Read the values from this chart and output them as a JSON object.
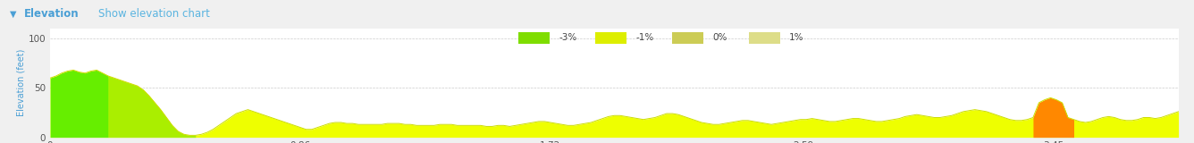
{
  "title": "Elevation",
  "subtitle": "Show elevation chart",
  "ylabel": "Elevation (feet)",
  "yticks": [
    0,
    50,
    100
  ],
  "ylim": [
    0,
    110
  ],
  "xticks": [
    0,
    0.86,
    1.72,
    2.59,
    3.45
  ],
  "xlim": [
    0,
    3.88
  ],
  "background_color": "#f0f0f0",
  "plot_bg_color": "#ffffff",
  "grid_color": "#cccccc",
  "legend_items": [
    {
      "label": "-3%",
      "color": "#7FDD00"
    },
    {
      "label": "-1%",
      "color": "#DDEE00"
    },
    {
      "label": "0%",
      "color": "#CCCC55"
    },
    {
      "label": "1%",
      "color": "#DDDD88"
    }
  ],
  "elevation_x": [
    0.0,
    0.02,
    0.04,
    0.06,
    0.08,
    0.1,
    0.12,
    0.14,
    0.16,
    0.18,
    0.2,
    0.22,
    0.24,
    0.26,
    0.28,
    0.3,
    0.32,
    0.34,
    0.36,
    0.38,
    0.4,
    0.42,
    0.44,
    0.46,
    0.48,
    0.5,
    0.52,
    0.54,
    0.56,
    0.58,
    0.6,
    0.62,
    0.64,
    0.66,
    0.68,
    0.7,
    0.72,
    0.74,
    0.76,
    0.78,
    0.8,
    0.82,
    0.84,
    0.86,
    0.88,
    0.9,
    0.92,
    0.94,
    0.96,
    0.98,
    1.0,
    1.02,
    1.04,
    1.06,
    1.08,
    1.1,
    1.12,
    1.14,
    1.16,
    1.18,
    1.2,
    1.22,
    1.24,
    1.26,
    1.28,
    1.3,
    1.32,
    1.34,
    1.36,
    1.38,
    1.4,
    1.42,
    1.44,
    1.46,
    1.48,
    1.5,
    1.52,
    1.54,
    1.56,
    1.58,
    1.6,
    1.62,
    1.64,
    1.66,
    1.68,
    1.7,
    1.72,
    1.74,
    1.76,
    1.78,
    1.8,
    1.82,
    1.84,
    1.86,
    1.88,
    1.9,
    1.92,
    1.94,
    1.96,
    1.98,
    2.0,
    2.02,
    2.04,
    2.06,
    2.08,
    2.1,
    2.12,
    2.14,
    2.16,
    2.18,
    2.2,
    2.22,
    2.24,
    2.26,
    2.28,
    2.3,
    2.32,
    2.34,
    2.36,
    2.38,
    2.4,
    2.42,
    2.44,
    2.46,
    2.48,
    2.5,
    2.52,
    2.54,
    2.56,
    2.58,
    2.6,
    2.62,
    2.64,
    2.66,
    2.68,
    2.7,
    2.72,
    2.74,
    2.76,
    2.78,
    2.8,
    2.82,
    2.84,
    2.86,
    2.88,
    2.9,
    2.92,
    2.94,
    2.96,
    2.98,
    3.0,
    3.02,
    3.04,
    3.06,
    3.08,
    3.1,
    3.12,
    3.14,
    3.16,
    3.18,
    3.2,
    3.22,
    3.24,
    3.26,
    3.28,
    3.3,
    3.32,
    3.34,
    3.36,
    3.38,
    3.4,
    3.42,
    3.44,
    3.46,
    3.48,
    3.5,
    3.52,
    3.54,
    3.56,
    3.58,
    3.6,
    3.62,
    3.64,
    3.66,
    3.68,
    3.7,
    3.72,
    3.74,
    3.76,
    3.78,
    3.8,
    3.82,
    3.84,
    3.86,
    3.88
  ],
  "elevation_y": [
    60,
    62,
    65,
    67,
    68,
    66,
    65,
    67,
    68,
    65,
    62,
    60,
    58,
    56,
    54,
    52,
    48,
    42,
    35,
    28,
    20,
    12,
    6,
    3,
    2,
    2,
    3,
    5,
    8,
    12,
    16,
    20,
    24,
    26,
    28,
    26,
    24,
    22,
    20,
    18,
    16,
    14,
    12,
    10,
    8,
    8,
    10,
    12,
    14,
    15,
    15,
    14,
    14,
    13,
    13,
    13,
    13,
    13,
    14,
    14,
    14,
    13,
    13,
    12,
    12,
    12,
    12,
    13,
    13,
    13,
    12,
    12,
    12,
    12,
    12,
    11,
    11,
    12,
    12,
    11,
    12,
    13,
    14,
    15,
    16,
    16,
    15,
    14,
    13,
    12,
    12,
    13,
    14,
    15,
    17,
    19,
    21,
    22,
    22,
    21,
    20,
    19,
    18,
    19,
    20,
    22,
    24,
    24,
    23,
    21,
    19,
    17,
    15,
    14,
    13,
    13,
    14,
    15,
    16,
    17,
    17,
    16,
    15,
    14,
    13,
    14,
    15,
    16,
    17,
    18,
    18,
    19,
    18,
    17,
    16,
    16,
    17,
    18,
    19,
    19,
    18,
    17,
    16,
    16,
    17,
    18,
    19,
    21,
    22,
    23,
    22,
    21,
    20,
    20,
    21,
    22,
    24,
    26,
    27,
    28,
    27,
    26,
    24,
    22,
    20,
    18,
    17,
    17,
    18,
    20,
    35,
    38,
    40,
    38,
    35,
    20,
    18,
    16,
    15,
    16,
    18,
    20,
    21,
    20,
    18,
    17,
    17,
    18,
    20,
    20,
    19,
    20,
    22,
    24,
    26
  ],
  "green_end_x": 0.2,
  "orange_start_x": 3.38,
  "orange_end_x": 3.52
}
